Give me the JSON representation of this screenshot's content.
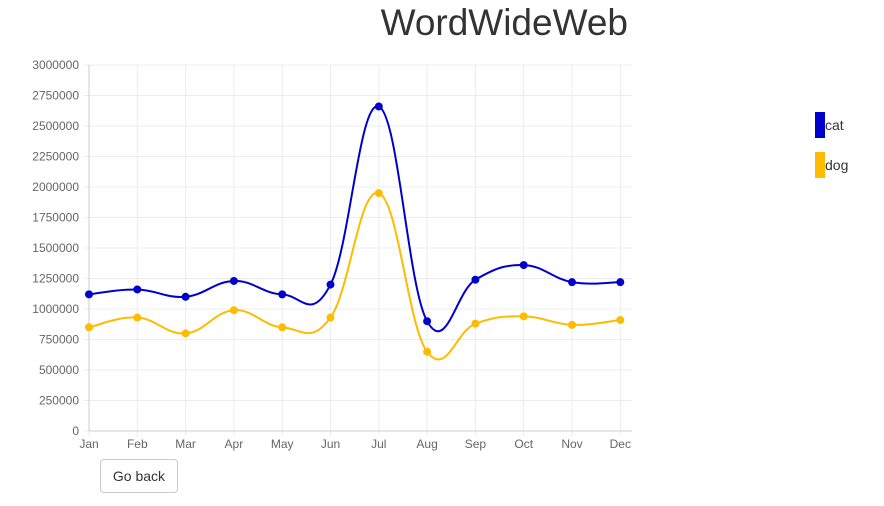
{
  "chart_data": {
    "type": "line",
    "title": "WordWideWeb",
    "categories": [
      "Jan",
      "Feb",
      "Mar",
      "Apr",
      "May",
      "Jun",
      "Jul",
      "Aug",
      "Sep",
      "Oct",
      "Nov",
      "Dec"
    ],
    "series": [
      {
        "name": "cat",
        "color": "#0000cc",
        "values": [
          1120000,
          1160000,
          1100000,
          1230000,
          1120000,
          1200000,
          2660000,
          900000,
          1240000,
          1360000,
          1220000,
          1220000
        ]
      },
      {
        "name": "dog",
        "color": "#ffbb00",
        "values": [
          850000,
          930000,
          800000,
          990000,
          850000,
          930000,
          1950000,
          650000,
          880000,
          940000,
          870000,
          910000
        ]
      }
    ],
    "ylim": [
      0,
      3000000
    ],
    "yticks": [
      "0",
      "250000",
      "500000",
      "750000",
      "1000000",
      "1250000",
      "1500000",
      "1750000",
      "2000000",
      "2250000",
      "2500000",
      "2750000",
      "3000000"
    ],
    "grid": true,
    "legend": "right"
  },
  "buttons": {
    "back_label": "Go back"
  }
}
